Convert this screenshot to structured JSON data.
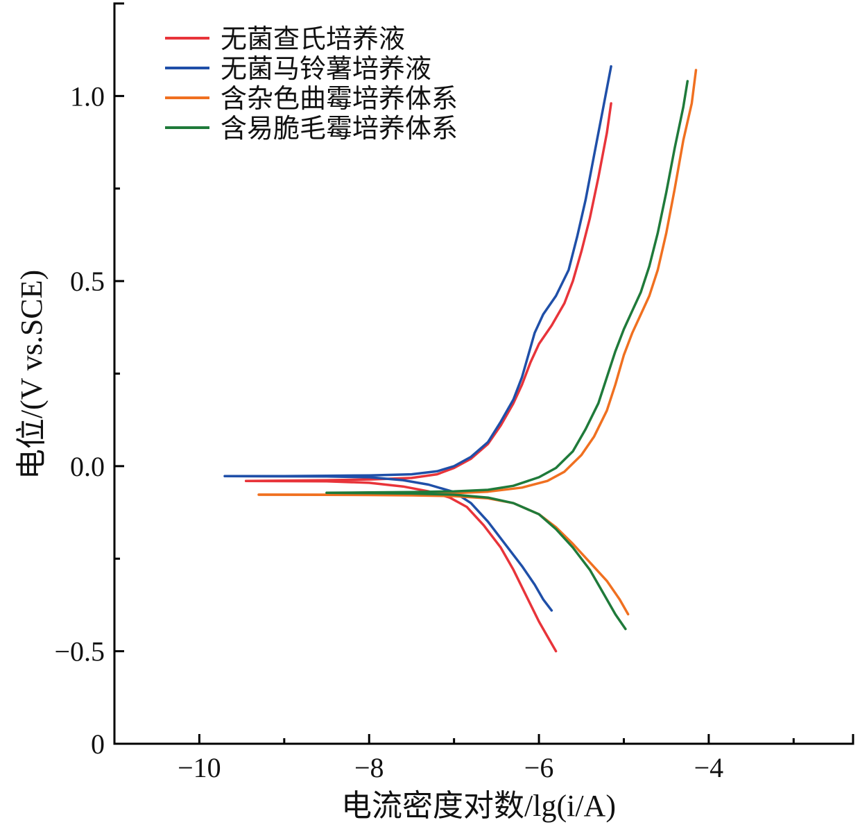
{
  "chart_data": {
    "type": "line",
    "xlabel": "电流密度对数/lg(i/A)",
    "ylabel": "电位/(V vs.SCE)",
    "xlim": [
      -11,
      -2.3
    ],
    "ylim": [
      -0.75,
      1.25
    ],
    "x_ticks": [
      {
        "value": -10,
        "label": "−10"
      },
      {
        "value": -8,
        "label": "−8"
      },
      {
        "value": -6,
        "label": "−6"
      },
      {
        "value": -4,
        "label": "−4"
      }
    ],
    "x_minor_ticks": [
      -9,
      -7,
      -5,
      -3
    ],
    "y_ticks": [
      {
        "value": 1.0,
        "label": "1.0"
      },
      {
        "value": 0.5,
        "label": "0.5"
      },
      {
        "value": 0.0,
        "label": "0.0"
      },
      {
        "value": -0.5,
        "label": "−0.5"
      }
    ],
    "y_minor_ticks": [
      0.75,
      0.25,
      -0.25
    ],
    "y_origin_label": "0",
    "legend_position": "top-left",
    "series": [
      {
        "name": "无菌查氏培养液",
        "color": "#e8343a",
        "anodic": [
          [
            -9.45,
            -0.04
          ],
          [
            -9.0,
            -0.039
          ],
          [
            -8.5,
            -0.038
          ],
          [
            -8.0,
            -0.036
          ],
          [
            -7.5,
            -0.032
          ],
          [
            -7.2,
            -0.022
          ],
          [
            -7.0,
            -0.005
          ],
          [
            -6.8,
            0.02
          ],
          [
            -6.6,
            0.06
          ],
          [
            -6.45,
            0.11
          ],
          [
            -6.3,
            0.17
          ],
          [
            -6.2,
            0.22
          ],
          [
            -6.1,
            0.28
          ],
          [
            -6.0,
            0.33
          ],
          [
            -5.85,
            0.38
          ],
          [
            -5.7,
            0.44
          ],
          [
            -5.6,
            0.5
          ],
          [
            -5.5,
            0.58
          ],
          [
            -5.4,
            0.67
          ],
          [
            -5.3,
            0.78
          ],
          [
            -5.2,
            0.9
          ],
          [
            -5.15,
            0.98
          ]
        ],
        "cathodic": [
          [
            -9.45,
            -0.04
          ],
          [
            -8.5,
            -0.041
          ],
          [
            -8.0,
            -0.045
          ],
          [
            -7.6,
            -0.055
          ],
          [
            -7.3,
            -0.068
          ],
          [
            -7.05,
            -0.085
          ],
          [
            -6.85,
            -0.11
          ],
          [
            -6.65,
            -0.16
          ],
          [
            -6.45,
            -0.22
          ],
          [
            -6.3,
            -0.28
          ],
          [
            -6.15,
            -0.35
          ],
          [
            -6.0,
            -0.42
          ],
          [
            -5.9,
            -0.46
          ],
          [
            -5.8,
            -0.5
          ]
        ]
      },
      {
        "name": "无菌马铃薯培养液",
        "color": "#1f4fa8",
        "anodic": [
          [
            -9.7,
            -0.027
          ],
          [
            -9.0,
            -0.027
          ],
          [
            -8.5,
            -0.026
          ],
          [
            -8.0,
            -0.025
          ],
          [
            -7.5,
            -0.022
          ],
          [
            -7.2,
            -0.014
          ],
          [
            -7.0,
            0.0
          ],
          [
            -6.8,
            0.025
          ],
          [
            -6.6,
            0.065
          ],
          [
            -6.45,
            0.12
          ],
          [
            -6.3,
            0.18
          ],
          [
            -6.2,
            0.24
          ],
          [
            -6.1,
            0.32
          ],
          [
            -6.05,
            0.36
          ],
          [
            -5.95,
            0.41
          ],
          [
            -5.8,
            0.46
          ],
          [
            -5.65,
            0.53
          ],
          [
            -5.55,
            0.62
          ],
          [
            -5.45,
            0.72
          ],
          [
            -5.35,
            0.84
          ],
          [
            -5.25,
            0.96
          ],
          [
            -5.15,
            1.08
          ]
        ],
        "cathodic": [
          [
            -9.7,
            -0.027
          ],
          [
            -8.5,
            -0.028
          ],
          [
            -8.0,
            -0.03
          ],
          [
            -7.6,
            -0.038
          ],
          [
            -7.3,
            -0.05
          ],
          [
            -7.0,
            -0.07
          ],
          [
            -6.8,
            -0.1
          ],
          [
            -6.6,
            -0.15
          ],
          [
            -6.4,
            -0.21
          ],
          [
            -6.2,
            -0.27
          ],
          [
            -6.05,
            -0.32
          ],
          [
            -5.95,
            -0.36
          ],
          [
            -5.85,
            -0.39
          ]
        ]
      },
      {
        "name": "含杂色曲霉培养体系",
        "color": "#f07020",
        "anodic": [
          [
            -9.3,
            -0.077
          ],
          [
            -8.5,
            -0.077
          ],
          [
            -8.0,
            -0.076
          ],
          [
            -7.5,
            -0.075
          ],
          [
            -7.0,
            -0.073
          ],
          [
            -6.6,
            -0.069
          ],
          [
            -6.2,
            -0.058
          ],
          [
            -5.9,
            -0.04
          ],
          [
            -5.7,
            -0.015
          ],
          [
            -5.5,
            0.03
          ],
          [
            -5.35,
            0.08
          ],
          [
            -5.2,
            0.15
          ],
          [
            -5.1,
            0.22
          ],
          [
            -5.0,
            0.3
          ],
          [
            -4.9,
            0.36
          ],
          [
            -4.8,
            0.41
          ],
          [
            -4.7,
            0.46
          ],
          [
            -4.6,
            0.53
          ],
          [
            -4.5,
            0.63
          ],
          [
            -4.4,
            0.75
          ],
          [
            -4.3,
            0.88
          ],
          [
            -4.2,
            0.98
          ],
          [
            -4.15,
            1.07
          ]
        ],
        "cathodic": [
          [
            -9.3,
            -0.077
          ],
          [
            -8.0,
            -0.078
          ],
          [
            -7.5,
            -0.079
          ],
          [
            -7.0,
            -0.081
          ],
          [
            -6.6,
            -0.087
          ],
          [
            -6.3,
            -0.1
          ],
          [
            -6.0,
            -0.13
          ],
          [
            -5.8,
            -0.165
          ],
          [
            -5.6,
            -0.21
          ],
          [
            -5.4,
            -0.26
          ],
          [
            -5.2,
            -0.31
          ],
          [
            -5.05,
            -0.36
          ],
          [
            -4.95,
            -0.4
          ]
        ]
      },
      {
        "name": "含易脆毛霉培养体系",
        "color": "#1f7a3a",
        "anodic": [
          [
            -8.5,
            -0.072
          ],
          [
            -8.0,
            -0.071
          ],
          [
            -7.5,
            -0.07
          ],
          [
            -7.0,
            -0.068
          ],
          [
            -6.6,
            -0.064
          ],
          [
            -6.3,
            -0.053
          ],
          [
            -6.0,
            -0.03
          ],
          [
            -5.8,
            -0.005
          ],
          [
            -5.6,
            0.04
          ],
          [
            -5.45,
            0.1
          ],
          [
            -5.3,
            0.17
          ],
          [
            -5.2,
            0.24
          ],
          [
            -5.1,
            0.31
          ],
          [
            -5.0,
            0.37
          ],
          [
            -4.9,
            0.42
          ],
          [
            -4.8,
            0.47
          ],
          [
            -4.7,
            0.54
          ],
          [
            -4.6,
            0.63
          ],
          [
            -4.5,
            0.74
          ],
          [
            -4.4,
            0.86
          ],
          [
            -4.3,
            0.97
          ],
          [
            -4.25,
            1.04
          ]
        ],
        "cathodic": [
          [
            -8.5,
            -0.072
          ],
          [
            -8.0,
            -0.073
          ],
          [
            -7.5,
            -0.074
          ],
          [
            -7.0,
            -0.077
          ],
          [
            -6.6,
            -0.085
          ],
          [
            -6.3,
            -0.1
          ],
          [
            -6.0,
            -0.13
          ],
          [
            -5.8,
            -0.17
          ],
          [
            -5.6,
            -0.22
          ],
          [
            -5.4,
            -0.28
          ],
          [
            -5.25,
            -0.34
          ],
          [
            -5.1,
            -0.4
          ],
          [
            -4.98,
            -0.44
          ]
        ]
      }
    ]
  }
}
